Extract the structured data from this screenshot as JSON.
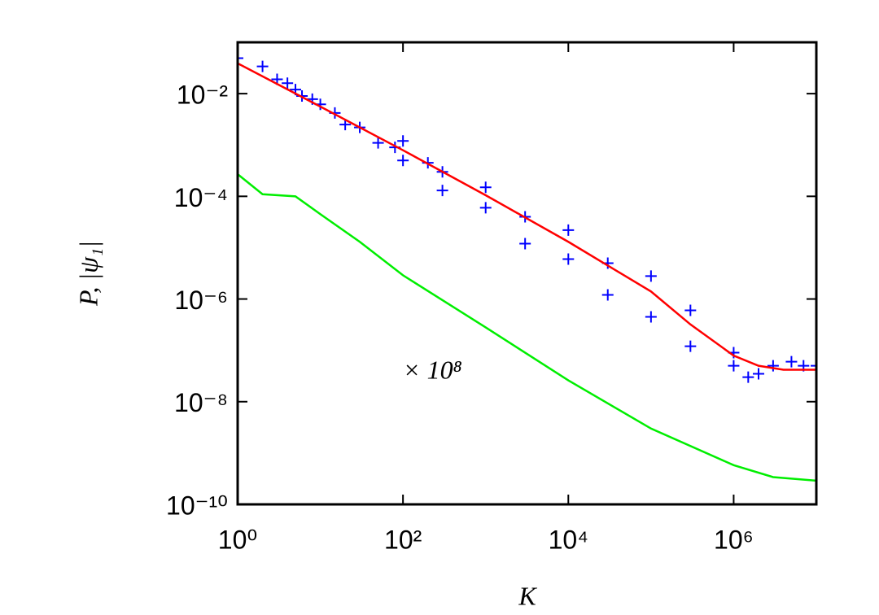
{
  "chart_data": {
    "type": "log-line",
    "x_label": "K",
    "y_label": "P, |ψ₁|",
    "annotation": "× 10⁸",
    "xscale": "log",
    "yscale": "log",
    "xlim": [
      1,
      10000000
    ],
    "ylim": [
      1e-10,
      0.1
    ],
    "xticks": [
      {
        "value": 1,
        "label": "10⁰"
      },
      {
        "value": 100,
        "label": "10²"
      },
      {
        "value": 10000,
        "label": "10⁴"
      },
      {
        "value": 1000000,
        "label": "10⁶"
      }
    ],
    "yticks": [
      {
        "value": 1e-10,
        "label": "10⁻¹⁰"
      },
      {
        "value": 1e-08,
        "label": "10⁻⁸"
      },
      {
        "value": 1e-06,
        "label": "10⁻⁶"
      },
      {
        "value": 0.0001,
        "label": "10⁻⁴"
      },
      {
        "value": 0.01,
        "label": "10⁻²"
      }
    ],
    "series": [
      {
        "color": "#0000ff",
        "marker": "+",
        "x": [
          1,
          2,
          3,
          4,
          5,
          6,
          8,
          10,
          15,
          20,
          30,
          50,
          80,
          100,
          100,
          200,
          300,
          300,
          1000,
          1000,
          3000,
          3000,
          10000,
          10000,
          30000,
          30000,
          100000,
          100000,
          300000,
          300000,
          1000000,
          1000000,
          1500000,
          2000000,
          3000000,
          5000000,
          7000000,
          10000000
        ],
        "values": [
          0.049,
          0.034,
          0.019,
          0.016,
          0.012,
          0.009,
          0.0078,
          0.0062,
          0.0042,
          0.0025,
          0.0022,
          0.0011,
          0.0009,
          0.0012,
          0.0005,
          0.00045,
          0.0003,
          0.00013,
          0.00015,
          6e-05,
          4e-05,
          1.2e-05,
          2.2e-05,
          6e-06,
          5e-06,
          1.2e-06,
          2.8e-06,
          4.5e-07,
          6e-07,
          1.2e-07,
          9e-08,
          5e-08,
          3e-08,
          3.5e-08,
          5e-08,
          6e-08,
          5e-08,
          5e-08
        ]
      },
      {
        "color": "#ff0000",
        "x": [
          1,
          10,
          100,
          1000,
          10000,
          100000,
          300000,
          1000000,
          2000000,
          4000000,
          10000000
        ],
        "values": [
          0.039,
          0.0056,
          0.00079,
          0.000105,
          1.3e-05,
          1.4e-06,
          3.2e-07,
          7.9e-08,
          5e-08,
          4.2e-08,
          4.2e-08
        ]
      },
      {
        "color": "#00ee00",
        "x": [
          1,
          2,
          5,
          10,
          30,
          100,
          1000,
          10000,
          100000,
          1000000,
          3000000,
          10000000
        ],
        "values": [
          0.00027,
          0.00011,
          0.0001,
          4.5e-05,
          1.3e-05,
          2.9e-06,
          2.8e-07,
          2.6e-08,
          3e-09,
          5.8e-10,
          3.4e-10,
          2.9e-10
        ]
      }
    ]
  }
}
